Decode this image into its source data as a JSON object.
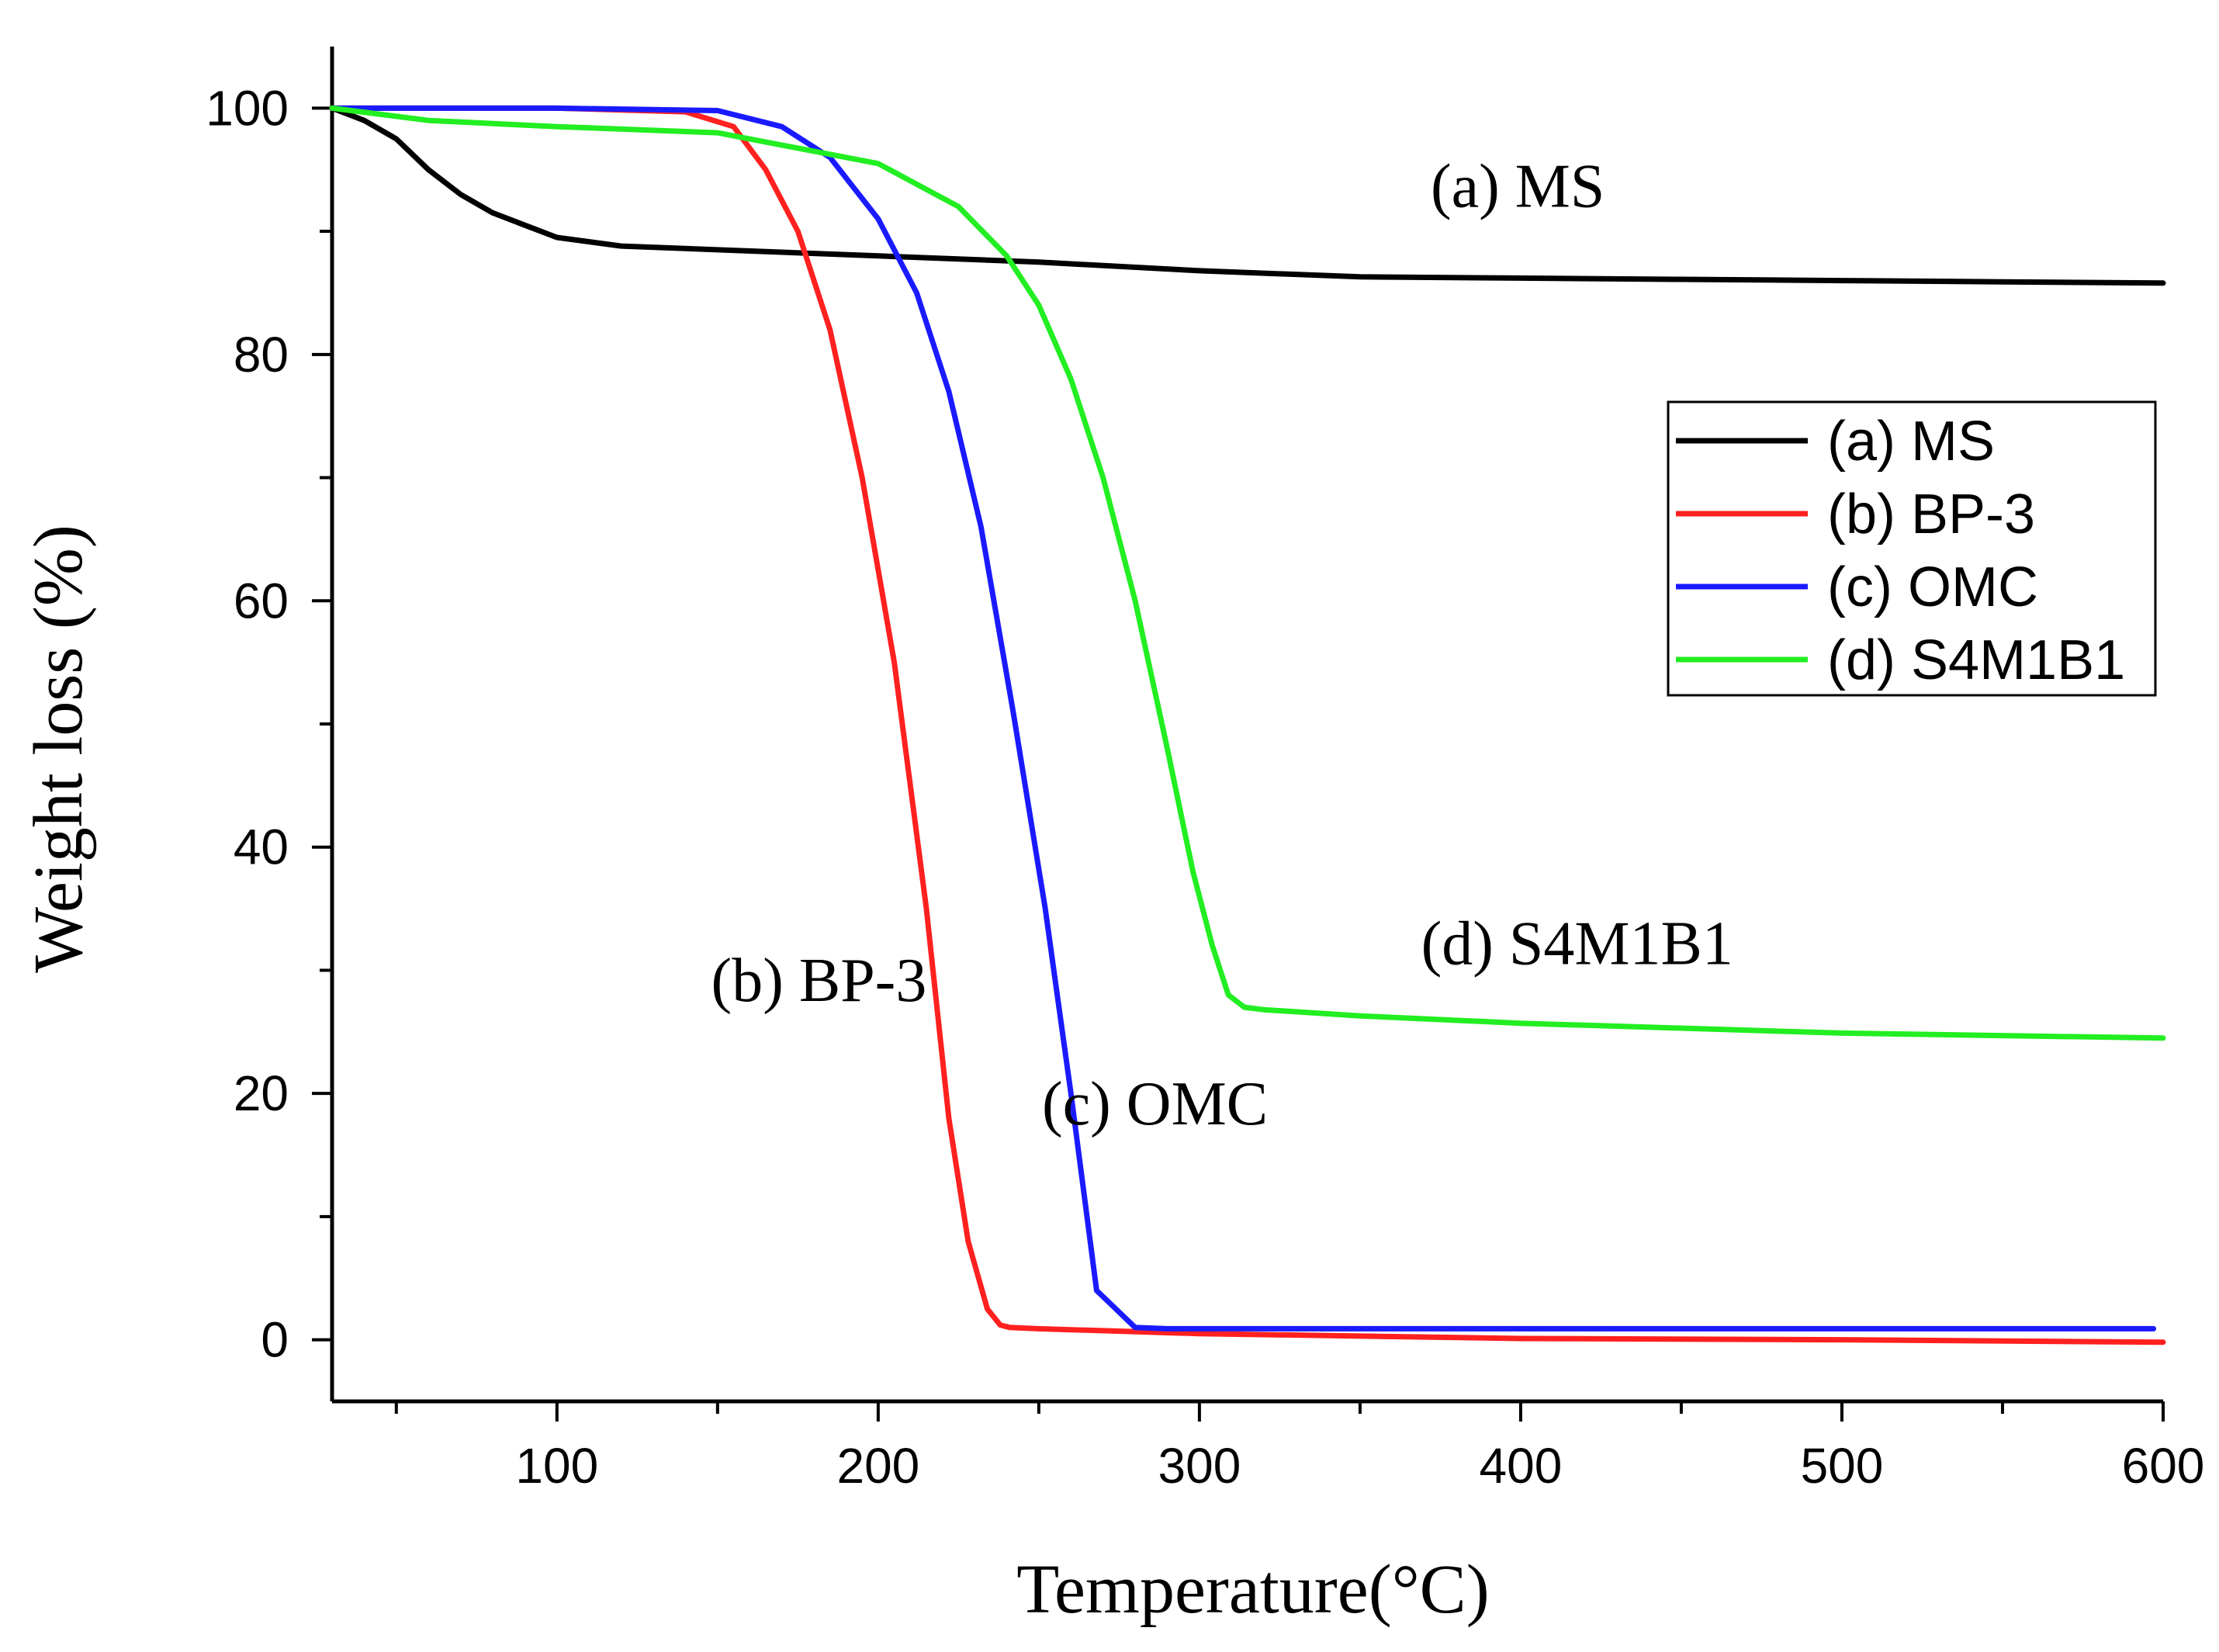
{
  "chart_data": {
    "type": "line",
    "xlabel": "Temperature(°C)",
    "ylabel": "Weight loss (%)",
    "xlim": [
      30,
      600
    ],
    "ylim": [
      -5,
      105
    ],
    "xticks": [
      100,
      200,
      300,
      400,
      500,
      600
    ],
    "yticks": [
      0,
      20,
      40,
      60,
      80,
      100
    ],
    "xminor_step": 50,
    "yminor_step": 10,
    "legend_position": "right",
    "series": [
      {
        "name": "(a) MS",
        "color": "#000000",
        "x": [
          30,
          40,
          50,
          60,
          70,
          80,
          90,
          100,
          120,
          150,
          200,
          250,
          300,
          350,
          400,
          450,
          500,
          550,
          600
        ],
        "y": [
          100,
          99,
          97.5,
          95,
          93,
          91.5,
          90.5,
          89.5,
          88.8,
          88.5,
          88.0,
          87.5,
          86.8,
          86.3,
          86.2,
          86.1,
          86.0,
          85.9,
          85.8
        ]
      },
      {
        "name": "(b) BP-3",
        "color": "#ff2020",
        "x": [
          30,
          100,
          140,
          155,
          165,
          175,
          185,
          195,
          205,
          215,
          222,
          228,
          234,
          238,
          241,
          250,
          300,
          400,
          500,
          600
        ],
        "y": [
          100,
          100,
          99.7,
          98.5,
          95,
          90,
          82,
          70,
          55,
          35,
          18,
          8,
          2.5,
          1.2,
          1.0,
          0.9,
          0.5,
          0.1,
          0,
          -0.2
        ]
      },
      {
        "name": "(c) OMC",
        "color": "#1a1aff",
        "x": [
          30,
          100,
          150,
          170,
          185,
          200,
          212,
          222,
          232,
          242,
          252,
          260,
          265,
          268,
          272,
          276,
          280,
          290,
          400,
          500,
          597
        ],
        "y": [
          100,
          100,
          99.8,
          98.5,
          96,
          91,
          85,
          77,
          66,
          51,
          35,
          20,
          10,
          4,
          3,
          2,
          1,
          0.9,
          0.9,
          0.9,
          0.9
        ]
      },
      {
        "name": "(d) S4M1B1",
        "color": "#22ee22",
        "x": [
          30,
          60,
          100,
          150,
          200,
          225,
          240,
          250,
          260,
          270,
          280,
          290,
          298,
          304,
          309,
          314,
          320,
          350,
          400,
          500,
          600
        ],
        "y": [
          100,
          99,
          98.5,
          98,
          95.5,
          92,
          88,
          84,
          78,
          70,
          60,
          48,
          38,
          32,
          28,
          27,
          26.8,
          26.3,
          25.7,
          24.9,
          24.5
        ]
      }
    ],
    "annotations": [
      {
        "text": "(a) MS",
        "x": 372,
        "y": 92
      },
      {
        "text": "(b) BP-3",
        "x": 148,
        "y": 27.5
      },
      {
        "text": "(c) OMC",
        "x": 251,
        "y": 17.5
      },
      {
        "text": "(d) S4M1B1",
        "x": 369,
        "y": 30.5
      }
    ]
  }
}
